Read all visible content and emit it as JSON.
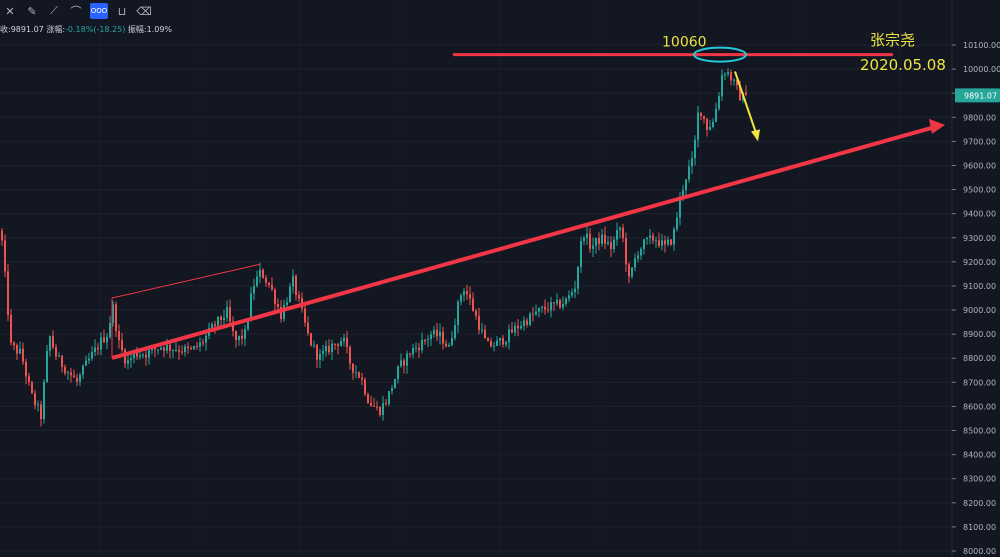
{
  "toolbar": {
    "icons": [
      "crosshair-icon",
      "pencil-icon",
      "ruler-icon",
      "brush-icon",
      "magnet-icon",
      "lock-icon",
      "trash-icon"
    ],
    "active_label": "OOO"
  },
  "infobar": {
    "close_label": "收:9891.07",
    "change_label": "涨幅:",
    "change_value": "-0.18%(-18.25)",
    "amplitude_label": "振幅:1.09%"
  },
  "chart_data": {
    "type": "candlestick",
    "symbol": "",
    "ylim": [
      8000,
      10150
    ],
    "yticks": [
      8000,
      8100,
      8200,
      8300,
      8400,
      8500,
      8600,
      8700,
      8800,
      8900,
      9000,
      9100,
      9200,
      9300,
      9400,
      9500,
      9600,
      9700,
      9800,
      9900,
      10000,
      10100
    ],
    "ytick_labels": [
      "8000.00",
      "8100.00",
      "8200.00",
      "8300.00",
      "8400.00",
      "8500.00",
      "8600.00",
      "8700.00",
      "8800.00",
      "8900.00",
      "9000.00",
      "9100.00",
      "9200.00",
      "9300.00",
      "9400.00",
      "9500.00",
      "9600.00",
      "9700.00",
      "9800.00",
      "9900.00",
      "10000.00",
      "10100.00"
    ],
    "last_price": 9891.07,
    "last_price_label": "9891.07",
    "up_color": "#26a69a",
    "down_color": "#ef5350",
    "anchors": [
      [
        0,
        9330
      ],
      [
        10,
        8850
      ],
      [
        20,
        8820
      ],
      [
        30,
        8650
      ],
      [
        40,
        8560
      ],
      [
        48,
        8900
      ],
      [
        56,
        8800
      ],
      [
        66,
        8750
      ],
      [
        76,
        8700
      ],
      [
        86,
        8780
      ],
      [
        100,
        8870
      ],
      [
        106,
        8900
      ],
      [
        112,
        9010
      ],
      [
        118,
        8860
      ],
      [
        126,
        8780
      ],
      [
        134,
        8820
      ],
      [
        146,
        8820
      ],
      [
        160,
        8850
      ],
      [
        176,
        8840
      ],
      [
        190,
        8830
      ],
      [
        200,
        8860
      ],
      [
        212,
        8930
      ],
      [
        226,
        8990
      ],
      [
        234,
        8870
      ],
      [
        244,
        8900
      ],
      [
        252,
        9100
      ],
      [
        260,
        9160
      ],
      [
        270,
        9090
      ],
      [
        280,
        8980
      ],
      [
        292,
        9120
      ],
      [
        300,
        9000
      ],
      [
        308,
        8880
      ],
      [
        318,
        8800
      ],
      [
        330,
        8850
      ],
      [
        342,
        8880
      ],
      [
        350,
        8770
      ],
      [
        360,
        8720
      ],
      [
        368,
        8620
      ],
      [
        378,
        8580
      ],
      [
        386,
        8630
      ],
      [
        398,
        8760
      ],
      [
        410,
        8830
      ],
      [
        420,
        8860
      ],
      [
        430,
        8900
      ],
      [
        440,
        8890
      ],
      [
        448,
        8840
      ],
      [
        456,
        9000
      ],
      [
        462,
        9100
      ],
      [
        468,
        9050
      ],
      [
        476,
        8960
      ],
      [
        486,
        8850
      ],
      [
        496,
        8860
      ],
      [
        506,
        8890
      ],
      [
        516,
        8930
      ],
      [
        526,
        8960
      ],
      [
        536,
        8990
      ],
      [
        546,
        9010
      ],
      [
        556,
        9020
      ],
      [
        566,
        9040
      ],
      [
        574,
        9100
      ],
      [
        582,
        9330
      ],
      [
        590,
        9260
      ],
      [
        600,
        9300
      ],
      [
        610,
        9260
      ],
      [
        620,
        9350
      ],
      [
        628,
        9120
      ],
      [
        636,
        9240
      ],
      [
        644,
        9280
      ],
      [
        654,
        9300
      ],
      [
        664,
        9260
      ],
      [
        672,
        9300
      ],
      [
        680,
        9480
      ],
      [
        686,
        9570
      ],
      [
        692,
        9620
      ],
      [
        698,
        9850
      ],
      [
        706,
        9760
      ],
      [
        712,
        9780
      ],
      [
        718,
        9900
      ],
      [
        722,
        10000
      ],
      [
        728,
        9980
      ],
      [
        734,
        9930
      ],
      [
        740,
        9880
      ],
      [
        746,
        9891
      ]
    ],
    "annotations": {
      "resistance_level": 10060,
      "resistance_label": "10060",
      "author": "张宗尧",
      "date": "2020.05.08",
      "trend_start": [
        112,
        9050
      ],
      "trend_mid": [
        260,
        9190
      ],
      "trend_end": [
        945,
        9760
      ]
    }
  }
}
